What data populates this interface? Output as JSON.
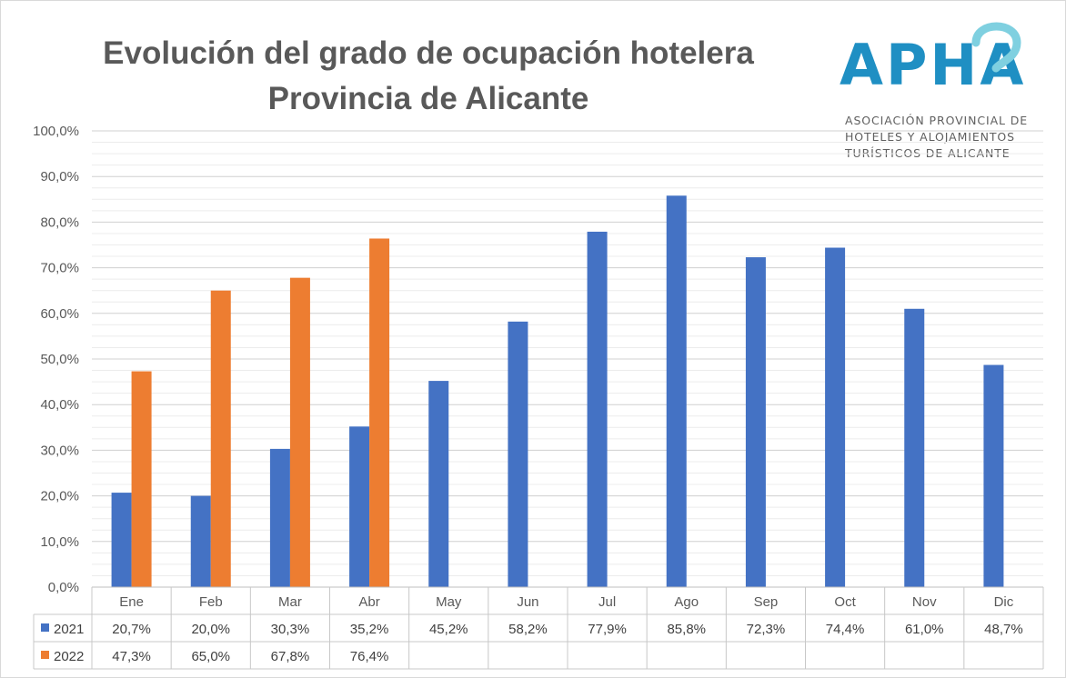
{
  "title": {
    "line1": "Evolución del grado de ocupación hotelera",
    "line2": "Provincia de Alicante"
  },
  "logo": {
    "wordmark": "APHA",
    "line1": "ASOCIACIÓN PROVINCIAL DE",
    "line2": "HOTELES Y ALOJAMIENTOS",
    "line3": "TURÍSTICOS DE ALICANTE",
    "color": "#1f8fc3"
  },
  "chart_data": {
    "type": "bar",
    "title": "Evolución del grado de ocupación hotelera Provincia de Alicante",
    "categories": [
      "Ene",
      "Feb",
      "Mar",
      "Abr",
      "May",
      "Jun",
      "Jul",
      "Ago",
      "Sep",
      "Oct",
      "Nov",
      "Dic"
    ],
    "series": [
      {
        "name": "2021",
        "color": "#4472c4",
        "values": [
          20.7,
          20.0,
          30.3,
          35.2,
          45.2,
          58.2,
          77.9,
          85.8,
          72.3,
          74.4,
          61.0,
          48.7
        ],
        "labels": [
          "20,7%",
          "20,0%",
          "30,3%",
          "35,2%",
          "45,2%",
          "58,2%",
          "77,9%",
          "85,8%",
          "72,3%",
          "74,4%",
          "61,0%",
          "48,7%"
        ]
      },
      {
        "name": "2022",
        "color": "#ed7d31",
        "values": [
          47.3,
          65.0,
          67.8,
          76.4,
          null,
          null,
          null,
          null,
          null,
          null,
          null,
          null
        ],
        "labels": [
          "47,3%",
          "65,0%",
          "67,8%",
          "76,4%",
          "",
          "",
          "",
          "",
          "",
          "",
          "",
          ""
        ]
      }
    ],
    "ylim": [
      0,
      100
    ],
    "yticks": [
      0,
      10,
      20,
      30,
      40,
      50,
      60,
      70,
      80,
      90,
      100
    ],
    "ytick_labels": [
      "0,0%",
      "10,0%",
      "20,0%",
      "30,0%",
      "40,0%",
      "50,0%",
      "60,0%",
      "70,0%",
      "80,0%",
      "90,0%",
      "100,0%"
    ],
    "grid": "major and minor horizontal",
    "legend": "data table below chart"
  }
}
